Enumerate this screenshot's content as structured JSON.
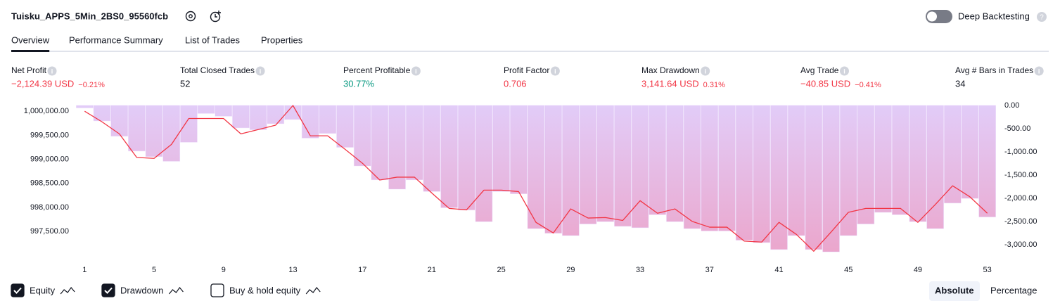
{
  "header": {
    "title": "Tuisku_APPS_5Min_2BS0_95560fcb",
    "toggle": {
      "label": "Deep Backtesting",
      "on": false
    }
  },
  "tabs": {
    "items": [
      "Overview",
      "Performance Summary",
      "List of Trades",
      "Properties"
    ],
    "active": 0
  },
  "metrics": [
    {
      "label": "Net Profit",
      "value": "−2,124.39 USD",
      "extra": "−0.21%",
      "color": "#f23645"
    },
    {
      "label": "Total Closed Trades",
      "value": "52",
      "color": "#131722"
    },
    {
      "label": "Percent Profitable",
      "value": "30.77%",
      "color": "#089981"
    },
    {
      "label": "Profit Factor",
      "value": "0.706",
      "color": "#f23645"
    },
    {
      "label": "Max Drawdown",
      "value": "3,141.64 USD",
      "extra": "0.31%",
      "color": "#f23645"
    },
    {
      "label": "Avg Trade",
      "value": "−40.85 USD",
      "extra": "−0.41%",
      "color": "#f23645"
    },
    {
      "label": "Avg # Bars in Trades",
      "value": "34",
      "color": "#131722"
    }
  ],
  "chart_data": {
    "type": "combo",
    "x": [
      1,
      2,
      3,
      4,
      5,
      6,
      7,
      8,
      9,
      10,
      11,
      12,
      13,
      14,
      15,
      16,
      17,
      18,
      19,
      20,
      21,
      22,
      23,
      24,
      25,
      26,
      27,
      28,
      29,
      30,
      31,
      32,
      33,
      34,
      35,
      36,
      37,
      38,
      39,
      40,
      41,
      42,
      43,
      44,
      45,
      46,
      47,
      48,
      49,
      50,
      51,
      52,
      53
    ],
    "xlim": [
      0.5,
      53.5
    ],
    "xticks": [
      1,
      5,
      9,
      13,
      17,
      21,
      25,
      29,
      33,
      37,
      41,
      45,
      49,
      53
    ],
    "ylim": [
      997050,
      1000120
    ],
    "yticks": [
      {
        "value": 1000000,
        "label": "1,000,000.00"
      },
      {
        "value": 999500,
        "label": "999,500.00"
      },
      {
        "value": 999000,
        "label": "999,000.00"
      },
      {
        "value": 998500,
        "label": "998,500.00"
      },
      {
        "value": 998000,
        "label": "998,000.00"
      },
      {
        "value": 997500,
        "label": "997,500.00"
      }
    ],
    "y2lim": [
      -3180,
      0
    ],
    "y2ticks": [
      {
        "value": 0,
        "label": "0.00"
      },
      {
        "value": -500,
        "label": "-500.00"
      },
      {
        "value": -1000,
        "label": "-1,000.00"
      },
      {
        "value": -1500,
        "label": "-1,500.00"
      },
      {
        "value": -2000,
        "label": "-2,000.00"
      },
      {
        "value": -2500,
        "label": "-2,500.00"
      },
      {
        "value": -3000,
        "label": "-3,000.00"
      }
    ],
    "series": [
      {
        "name": "Equity",
        "kind": "line",
        "axis": "y",
        "color": "#f23645",
        "checked": true,
        "values": [
          1000000,
          999780,
          999530,
          999040,
          999020,
          999310,
          999850,
          999850,
          999850,
          999530,
          999620,
          999710,
          1000120,
          999490,
          999490,
          999210,
          998920,
          998570,
          998630,
          998630,
          998300,
          997980,
          997950,
          998360,
          998360,
          998330,
          997690,
          997470,
          997970,
          997780,
          997790,
          997730,
          998140,
          997880,
          997970,
          997710,
          997590,
          997590,
          997300,
          997280,
          997690,
          997440,
          997090,
          997490,
          997900,
          997980,
          997980,
          997980,
          997690,
          998060,
          998450,
          998220,
          997880
        ]
      },
      {
        "name": "Drawdown",
        "kind": "bar",
        "axis": "y2",
        "color": "#d9bdf7",
        "checked": true,
        "values": [
          -50,
          -330,
          -660,
          -980,
          -1100,
          -1200,
          -790,
          -170,
          -230,
          -480,
          -520,
          -390,
          -300,
          -700,
          -600,
          -900,
          -1300,
          -1600,
          -1800,
          -1600,
          -1850,
          -2200,
          -2250,
          -2500,
          -1850,
          -1900,
          -2650,
          -2750,
          -2800,
          -2550,
          -2500,
          -2600,
          -2630,
          -2350,
          -2500,
          -2650,
          -2700,
          -2700,
          -2900,
          -2950,
          -3100,
          -2800,
          -3100,
          -3150,
          -2800,
          -2550,
          -2300,
          -2350,
          -2500,
          -2650,
          -2100,
          -2000,
          -2400
        ]
      }
    ],
    "buy_hold": {
      "name": "Buy & hold equity",
      "checked": false
    }
  },
  "view_buttons": {
    "items": [
      "Absolute",
      "Percentage"
    ],
    "active": 0
  }
}
